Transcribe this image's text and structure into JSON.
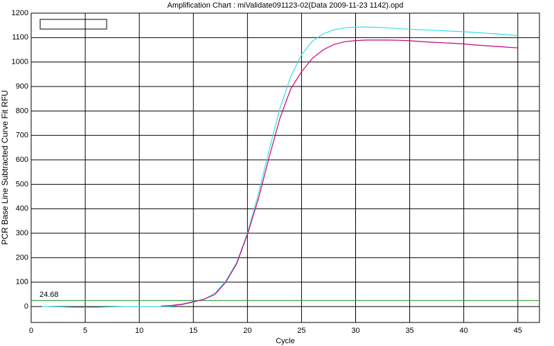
{
  "chart_data": {
    "type": "line",
    "title": "Amplification Chart : miValidate091123-02(Data 2009-11-23 1142).opd",
    "x_label": "Cycle",
    "y_label": "PCR Base Line Subtracted Curve Fit RFU",
    "x": [
      1,
      2,
      3,
      4,
      5,
      6,
      7,
      8,
      9,
      10,
      11,
      12,
      13,
      14,
      15,
      16,
      17,
      18,
      19,
      20,
      21,
      22,
      23,
      24,
      25,
      26,
      27,
      28,
      29,
      30,
      31,
      32,
      33,
      34,
      35,
      36,
      37,
      38,
      39,
      40,
      41,
      42,
      43,
      44,
      45
    ],
    "series": [
      {
        "color": "#33e0e6",
        "values": [
          0,
          -1,
          -2,
          -3,
          -4,
          -3,
          -2,
          -1,
          0,
          0,
          0,
          0,
          2,
          8,
          18,
          30,
          55,
          105,
          180,
          300,
          460,
          640,
          810,
          940,
          1030,
          1085,
          1115,
          1132,
          1140,
          1143,
          1143,
          1142,
          1140,
          1137,
          1134,
          1132,
          1130,
          1128,
          1126,
          1124,
          1121,
          1118,
          1115,
          1112,
          1108
        ]
      },
      {
        "color": "#cc0077",
        "values": [
          null,
          null,
          null,
          null,
          null,
          null,
          null,
          null,
          null,
          null,
          null,
          2,
          5,
          10,
          20,
          30,
          50,
          100,
          175,
          295,
          440,
          610,
          770,
          890,
          960,
          1015,
          1050,
          1072,
          1083,
          1088,
          1090,
          1090,
          1090,
          1089,
          1087,
          1084,
          1081,
          1079,
          1077,
          1074,
          1070,
          1067,
          1064,
          1061,
          1058
        ]
      }
    ],
    "threshold": 24.68,
    "threshold_color": "#2e9a2e",
    "xlim": [
      0,
      47
    ],
    "xticks": [
      0,
      5,
      10,
      15,
      20,
      25,
      30,
      35,
      40,
      45
    ],
    "ylim": [
      -65,
      1200
    ],
    "yticks": [
      0,
      100,
      200,
      300,
      400,
      500,
      600,
      700,
      800,
      900,
      1000,
      1100,
      1200
    ],
    "grid": true
  }
}
